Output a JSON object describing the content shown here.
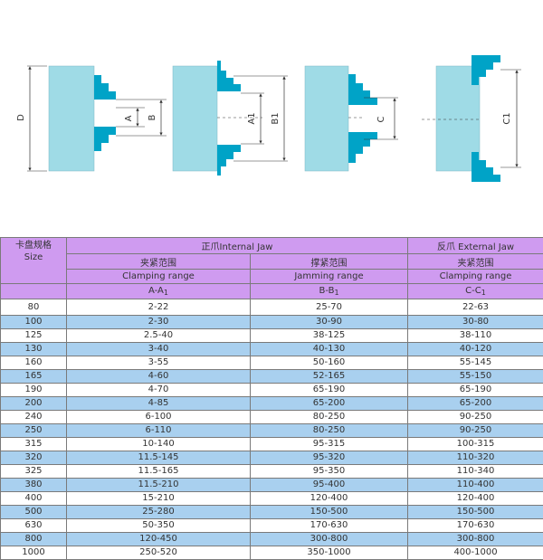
{
  "diagram": {
    "labels": {
      "D": "D",
      "A": "A",
      "B": "B",
      "A1": "A1",
      "B1": "B1",
      "C": "C",
      "C1": "C1"
    },
    "colors": {
      "body": "#9fdbe6",
      "jaw": "#00a3c7",
      "line": "#333333"
    }
  },
  "table": {
    "header": {
      "size_cn": "卡盘规格",
      "size_en": "Size",
      "internal_jaw": "正爪Internal Jaw",
      "external_jaw": "反爪 External Jaw",
      "clamping_cn": "夹紧范围",
      "clamping_en": "Clamping range",
      "jamming_cn": "撑紧范围",
      "jamming_en": "Jamming range",
      "clamping_cn_2": "夹紧范围",
      "clamping_en_2": "Clamping range",
      "col_a": "A-A",
      "col_a_sub": "1",
      "col_b": "B-B",
      "col_b_sub": "1",
      "col_c": "C-C",
      "col_c_sub": "1"
    },
    "rows": [
      {
        "size": "80",
        "a": "2-22",
        "b": "25-70",
        "c": "22-63"
      },
      {
        "size": "100",
        "a": "2-30",
        "b": "30-90",
        "c": "30-80"
      },
      {
        "size": "125",
        "a": "2.5-40",
        "b": "38-125",
        "c": "38-110"
      },
      {
        "size": "130",
        "a": "3-40",
        "b": "40-130",
        "c": "40-120"
      },
      {
        "size": "160",
        "a": "3-55",
        "b": "50-160",
        "c": "55-145"
      },
      {
        "size": "165",
        "a": "4-60",
        "b": "52-165",
        "c": "55-150"
      },
      {
        "size": "190",
        "a": "4-70",
        "b": "65-190",
        "c": "65-190"
      },
      {
        "size": "200",
        "a": "4-85",
        "b": "65-200",
        "c": "65-200"
      },
      {
        "size": "240",
        "a": "6-100",
        "b": "80-250",
        "c": "90-250"
      },
      {
        "size": "250",
        "a": "6-110",
        "b": "80-250",
        "c": "90-250"
      },
      {
        "size": "315",
        "a": "10-140",
        "b": "95-315",
        "c": "100-315"
      },
      {
        "size": "320",
        "a": "11.5-145",
        "b": "95-320",
        "c": "110-320"
      },
      {
        "size": "325",
        "a": "11.5-165",
        "b": "95-350",
        "c": "110-340"
      },
      {
        "size": "380",
        "a": "11.5-210",
        "b": "95-400",
        "c": "110-400"
      },
      {
        "size": "400",
        "a": "15-210",
        "b": "120-400",
        "c": "120-400"
      },
      {
        "size": "500",
        "a": "25-280",
        "b": "150-500",
        "c": "150-500"
      },
      {
        "size": "630",
        "a": "50-350",
        "b": "170-630",
        "c": "170-630"
      },
      {
        "size": "800",
        "a": "120-450",
        "b": "300-800",
        "c": "300-800"
      },
      {
        "size": "1000",
        "a": "250-520",
        "b": "350-1000",
        "c": "400-1000"
      }
    ]
  }
}
